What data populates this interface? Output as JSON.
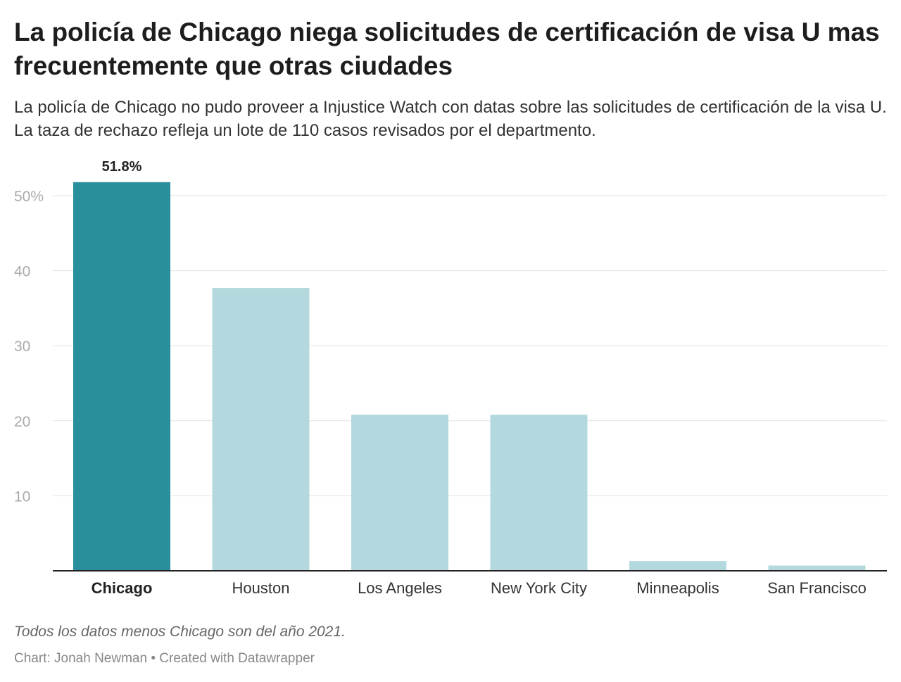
{
  "title": "La policía de Chicago niega solicitudes de certificación de visa U mas frecuentemente que otras ciudades",
  "subtitle": "La policía de Chicago no pudo proveer a Injustice Watch con datas sobre las solicitudes de certificación de la visa U. La taza de rechazo refleja un lote de 110 casos revisados por el departmento.",
  "note": "Todos los datos menos Chicago son del año 2021.",
  "byline": "Chart: Jonah Newman • Created with Datawrapper",
  "chart_data": {
    "type": "bar",
    "categories": [
      "Chicago",
      "Houston",
      "Los Angeles",
      "New York City",
      "Minneapolis",
      "San Francisco"
    ],
    "values": [
      51.8,
      37.7,
      20.8,
      20.8,
      1.3,
      0.7
    ],
    "highlight": "Chicago",
    "data_labels": {
      "Chicago": "51.8%"
    },
    "yticks": [
      "10",
      "20",
      "30",
      "40",
      "50%"
    ],
    "ytick_values": [
      10,
      20,
      30,
      40,
      50
    ],
    "ylim": [
      0,
      50
    ],
    "grid": true,
    "colors": {
      "highlight": "#2a8f9c",
      "default": "#b3d9de",
      "grid": "#e3e3e3",
      "axis": "#222222",
      "tick_label": "#aaaaaa"
    }
  }
}
